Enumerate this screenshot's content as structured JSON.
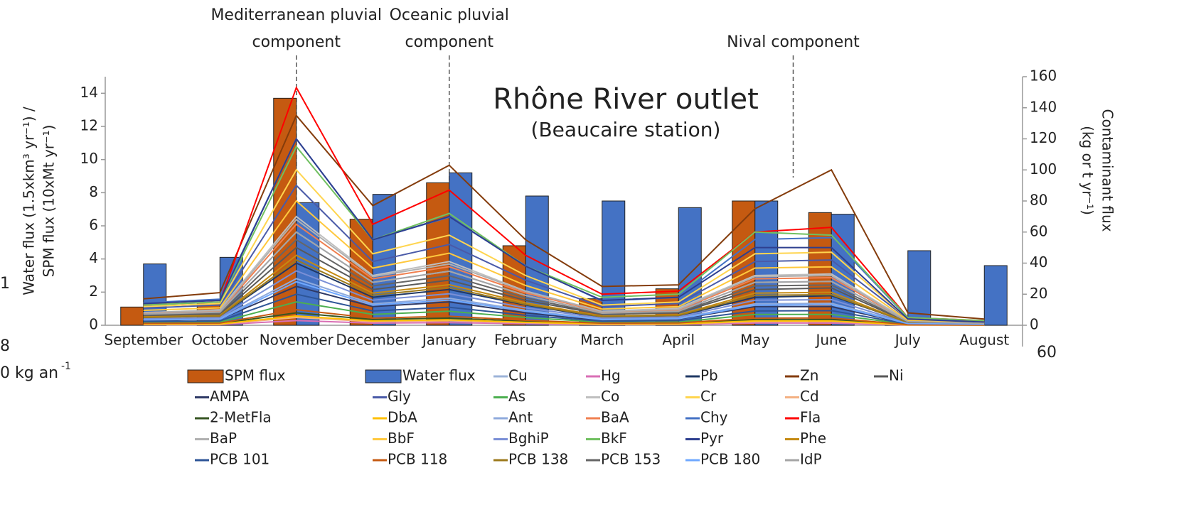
{
  "chart_data": {
    "type": "bar_line",
    "title": "Rhône River outlet",
    "subtitle": "(Beaucaire station)",
    "y_label": [
      "Water flux (1.5xkm³ yr⁻¹) /",
      "SPM flux (10xMt yr⁻¹)"
    ],
    "y2_label": [
      "Contaminant flux",
      "(kg or t yr⁻¹)"
    ],
    "annotations": [
      {
        "text": [
          "Mediterranean pluvial",
          "component"
        ],
        "category": 2
      },
      {
        "text": [
          "Oceanic pluvial",
          "component"
        ],
        "category": 4
      },
      {
        "text": [
          "Nival component"
        ],
        "category": 8.5
      }
    ],
    "fragments": [
      "1",
      "8",
      "0 kg an",
      "-1",
      "60"
    ],
    "categories": [
      "September",
      "October",
      "November",
      "December",
      "January",
      "February",
      "March",
      "April",
      "May",
      "June",
      "July",
      "August"
    ],
    "ylim": [
      0,
      15
    ],
    "yticks": [
      0,
      2,
      4,
      6,
      8,
      10,
      12,
      14
    ],
    "y2lim": [
      0,
      160
    ],
    "y2ticks": [
      0,
      20,
      40,
      60,
      80,
      100,
      120,
      140,
      160
    ],
    "bars": [
      {
        "name": "SPM flux",
        "color": "#c55a11",
        "values": [
          1.1,
          1.3,
          13.7,
          6.4,
          8.6,
          4.8,
          1.6,
          2.2,
          7.5,
          6.8,
          0.3,
          0.2
        ]
      },
      {
        "name": "Water flux",
        "color": "#4472c4",
        "values": [
          3.7,
          4.1,
          7.4,
          7.9,
          9.2,
          7.8,
          7.5,
          7.1,
          7.5,
          6.7,
          4.5,
          3.6
        ]
      }
    ],
    "series": [
      {
        "name": "Cu",
        "color": "#9db3d8",
        "axis": "y2",
        "values": [
          7.2,
          8.4,
          60,
          27.6,
          34.8,
          19.2,
          7.8,
          9,
          27.6,
          28.2,
          2.4,
          1.2
        ]
      },
      {
        "name": "Hg",
        "color": "#d96fb5",
        "axis": "y2",
        "values": [
          0.4,
          0.4,
          3,
          1.4,
          1.7,
          1,
          0.4,
          0.5,
          1.4,
          1.4,
          0.1,
          0.1
        ]
      },
      {
        "name": "Pb",
        "color": "#203864",
        "axis": "y2",
        "values": [
          5,
          6,
          40,
          18,
          23,
          13,
          5,
          6,
          18,
          19,
          2,
          1
        ]
      },
      {
        "name": "Zn",
        "color": "#843c0c",
        "axis": "y2",
        "values": [
          17,
          21,
          135,
          77,
          103,
          55,
          25,
          26,
          75,
          100,
          8,
          4
        ]
      },
      {
        "name": "Ni",
        "color": "#595959",
        "axis": "y2",
        "values": [
          6,
          7,
          50,
          23,
          29,
          16,
          7,
          8,
          23,
          24,
          2,
          1
        ]
      },
      {
        "name": "AMPA",
        "color": "#2f3a66",
        "axis": "y2",
        "values": [
          3,
          4,
          25,
          12,
          15,
          8,
          3,
          4,
          12,
          12,
          1,
          0.5
        ]
      },
      {
        "name": "Gly",
        "color": "#4a5aa8",
        "axis": "y2",
        "values": [
          11,
          13,
          90,
          41,
          52,
          29,
          12,
          14,
          41,
          42,
          4,
          2
        ]
      },
      {
        "name": "As",
        "color": "#4caf50",
        "axis": "y2",
        "values": [
          2,
          2,
          15,
          7,
          9,
          5,
          2,
          2,
          7,
          7,
          0.6,
          0.3
        ]
      },
      {
        "name": "Co",
        "color": "#bfbfbf",
        "axis": "y2",
        "values": [
          8,
          10,
          70,
          32,
          41,
          22,
          9,
          11,
          32,
          33,
          3,
          1
        ]
      },
      {
        "name": "Cr",
        "color": "#ffd54f",
        "axis": "y2",
        "values": [
          12,
          14,
          100,
          46,
          58,
          32,
          13,
          15,
          46,
          47,
          4,
          2
        ]
      },
      {
        "name": "Cd",
        "color": "#f4b183",
        "axis": "y2",
        "values": [
          0.6,
          0.7,
          5,
          2.3,
          2.9,
          1.6,
          0.7,
          0.8,
          2.3,
          2.4,
          0.2,
          0.1
        ]
      },
      {
        "name": "2-MetFla",
        "color": "#375623",
        "axis": "y2",
        "values": [
          1,
          1.1,
          8,
          3.7,
          4.6,
          2.6,
          1,
          1.2,
          3.7,
          3.8,
          0.3,
          0.2
        ]
      },
      {
        "name": "DbA",
        "color": "#ffc000",
        "axis": "y2",
        "values": [
          0.7,
          0.8,
          6,
          2.8,
          3.5,
          1.9,
          0.8,
          0.9,
          2.8,
          2.8,
          0.2,
          0.1
        ]
      },
      {
        "name": "Ant",
        "color": "#8faadc",
        "axis": "y2",
        "values": [
          3.6,
          4.2,
          30,
          13.8,
          17.4,
          9.6,
          3.9,
          4.5,
          13.8,
          14.1,
          1.2,
          0.6
        ]
      },
      {
        "name": "BaA",
        "color": "#f08050",
        "axis": "y2",
        "values": [
          7.8,
          9.1,
          65,
          29.9,
          37.7,
          20.8,
          8.5,
          9.8,
          29.9,
          30.6,
          2.6,
          1.3
        ]
      },
      {
        "name": "Chy",
        "color": "#4472c4",
        "axis": "y2",
        "values": [
          14.4,
          16.8,
          120,
          55.2,
          69.6,
          38.4,
          15.6,
          18,
          55.2,
          56.4,
          4.8,
          2.4
        ]
      },
      {
        "name": "Fla",
        "color": "#ff0000",
        "axis": "y2",
        "values": [
          13,
          15,
          153,
          65,
          87,
          45,
          20,
          22,
          60,
          63,
          5,
          3
        ]
      },
      {
        "name": "BaP",
        "color": "#b0b0b0",
        "axis": "y2",
        "values": [
          8.2,
          9.5,
          68,
          31.3,
          39.4,
          21.8,
          8.8,
          10.2,
          31.3,
          32,
          2.7,
          1.4
        ]
      },
      {
        "name": "BbF",
        "color": "#ffc83d",
        "axis": "y2",
        "values": [
          9.6,
          11.2,
          80,
          36.8,
          46.4,
          25.6,
          10.4,
          12,
          36.8,
          37.6,
          3.2,
          1.6
        ]
      },
      {
        "name": "BghiP",
        "color": "#7a8fd6",
        "axis": "y2",
        "values": [
          4.2,
          4.9,
          35,
          16.1,
          20.3,
          11.2,
          4.6,
          5.3,
          16.1,
          16.5,
          1.4,
          0.7
        ]
      },
      {
        "name": "BkF",
        "color": "#70c060",
        "axis": "y2",
        "values": [
          13,
          15,
          115,
          55,
          72,
          38,
          18,
          20,
          60,
          58,
          5,
          3
        ]
      },
      {
        "name": "Pyr",
        "color": "#2e3f8f",
        "axis": "y2",
        "values": [
          14,
          16,
          120,
          55,
          70,
          38,
          16,
          18,
          50,
          50,
          4,
          2
        ]
      },
      {
        "name": "Phe",
        "color": "#c58a12",
        "axis": "y2",
        "values": [
          5.4,
          6.3,
          45,
          20.7,
          26.1,
          14.4,
          5.9,
          6.8,
          20.7,
          21.2,
          1.8,
          0.9
        ]
      },
      {
        "name": "PCB 101",
        "color": "#2e5597",
        "axis": "y2",
        "values": [
          2.4,
          2.8,
          20,
          9.2,
          11.6,
          6.4,
          2.6,
          3,
          9.2,
          9.4,
          0.8,
          0.4
        ]
      },
      {
        "name": "PCB 118",
        "color": "#c55a11",
        "axis": "y2",
        "values": [
          1.2,
          1.4,
          10,
          4.6,
          5.8,
          3.2,
          1.3,
          1.5,
          4.6,
          4.7,
          0.4,
          0.2
        ]
      },
      {
        "name": "PCB 138",
        "color": "#9c7a1c",
        "axis": "y2",
        "values": [
          5,
          5.9,
          42,
          19.3,
          24.4,
          13.4,
          5.5,
          6.3,
          19.3,
          19.7,
          1.7,
          0.8
        ]
      },
      {
        "name": "PCB 153",
        "color": "#666666",
        "axis": "y2",
        "values": [
          6.6,
          7.7,
          55,
          25.3,
          31.9,
          17.6,
          7.2,
          8.3,
          25.3,
          25.9,
          2.2,
          1.1
        ]
      },
      {
        "name": "PCB 180",
        "color": "#6fa8ff",
        "axis": "y2",
        "values": [
          3.4,
          3.9,
          28,
          12.9,
          16.2,
          9,
          3.6,
          4.2,
          12.9,
          13.2,
          1.1,
          0.6
        ]
      },
      {
        "name": "IdP",
        "color": "#a5a5a5",
        "axis": "y2",
        "values": [
          7.2,
          8.4,
          60,
          27.6,
          34.8,
          19.2,
          7.8,
          9,
          27.6,
          28.2,
          2.4,
          1.2
        ]
      }
    ]
  }
}
